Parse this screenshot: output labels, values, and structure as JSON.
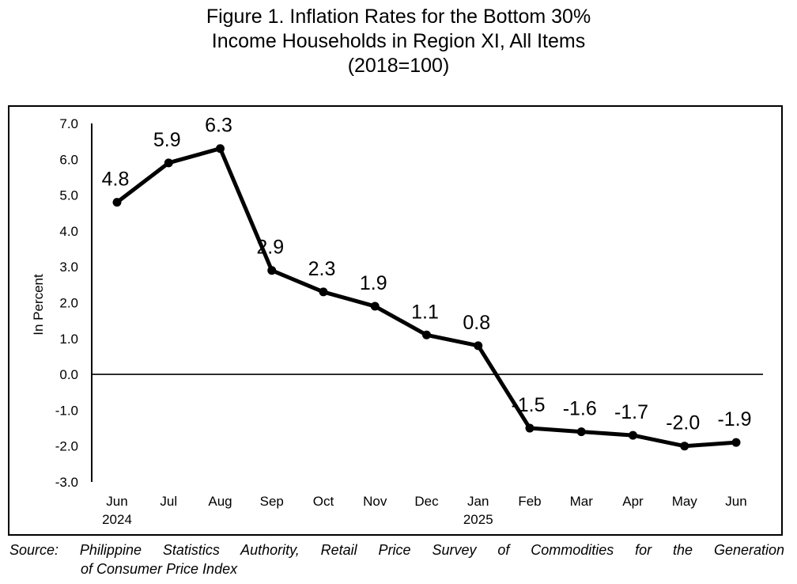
{
  "title": {
    "line1": "Figure 1. Inflation Rates for the Bottom 30%",
    "line2": "Income Households in Region XI, All Items",
    "line3": "(2018=100)"
  },
  "source": {
    "line1": "Source: Philippine Statistics Authority, Retail Price Survey of Commodities for the Generation",
    "line2": "of Consumer Price Index"
  },
  "chart_data": {
    "type": "line",
    "title": "Figure 1. Inflation Rates for the Bottom 30% Income Households in Region XI, All Items (2018=100)",
    "xlabel": "",
    "ylabel": "In Percent",
    "categories": [
      "Jun",
      "Jul",
      "Aug",
      "Sep",
      "Oct",
      "Nov",
      "Dec",
      "Jan",
      "Feb",
      "Mar",
      "Apr",
      "May",
      "Jun"
    ],
    "category_sublabels": [
      "2024",
      "",
      "",
      "",
      "",
      "",
      "",
      "2025",
      "",
      "",
      "",
      "",
      ""
    ],
    "values": [
      4.8,
      5.9,
      6.3,
      2.9,
      2.3,
      1.9,
      1.1,
      0.8,
      -1.5,
      -1.6,
      -1.7,
      -2.0,
      -1.9
    ],
    "data_labels": [
      "4.8",
      "5.9",
      "6.3",
      "2.9",
      "2.3",
      "1.9",
      "1.1",
      "0.8",
      "-1.5",
      "-1.6",
      "-1.7",
      "-2.0",
      "-1.9"
    ],
    "ylim": [
      -3.0,
      7.0
    ],
    "yticks": [
      "7.0",
      "6.0",
      "5.0",
      "4.0",
      "3.0",
      "2.0",
      "1.0",
      "0.0",
      "-1.0",
      "-2.0",
      "-3.0"
    ],
    "ytick_values": [
      7,
      6,
      5,
      4,
      3,
      2,
      1,
      0,
      -1,
      -2,
      -3
    ],
    "grid": false,
    "legend": "none",
    "line_color": "#000000"
  }
}
